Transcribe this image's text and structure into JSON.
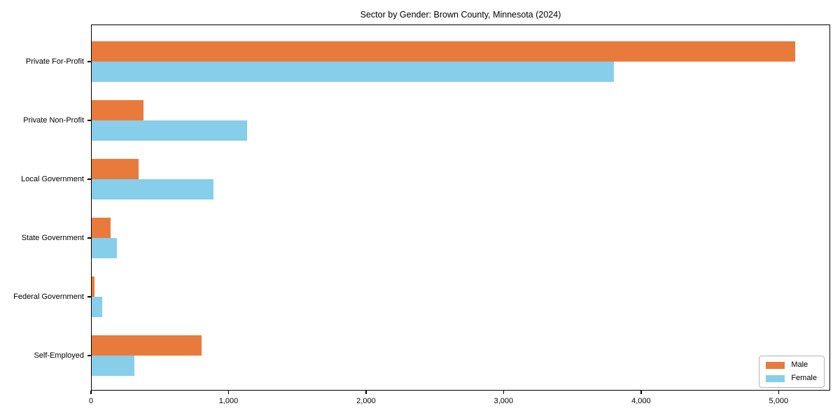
{
  "figure": {
    "background": "#ffffff",
    "spine_color": "#000000",
    "tick_color": "#000000",
    "text_color": "#000000"
  },
  "chart_data": {
    "type": "bar",
    "orientation": "horizontal",
    "title": "Sector by Gender: Brown County, Minnesota (2024)",
    "categories": [
      "Private For-Profit",
      "Private Non-Profit",
      "Local Government",
      "State Government",
      "Federal Government",
      "Self-Employed"
    ],
    "series": [
      {
        "name": "Male",
        "color": "#e87b3c",
        "values": [
          5117,
          377,
          341,
          139,
          22,
          797
        ]
      },
      {
        "name": "Female",
        "color": "#87ceeb",
        "values": [
          3797,
          1129,
          886,
          185,
          78,
          310
        ]
      }
    ],
    "xlabel": "",
    "ylabel": "",
    "xlim": [
      0,
      5375
    ],
    "xticks": [
      0,
      1000,
      2000,
      3000,
      4000,
      5000
    ],
    "xtick_labels": [
      "0",
      "1,000",
      "2,000",
      "3,000",
      "4,000",
      "5,000"
    ],
    "grid": false,
    "legend": {
      "position": "lower right",
      "entries": [
        "Male",
        "Female"
      ]
    }
  }
}
